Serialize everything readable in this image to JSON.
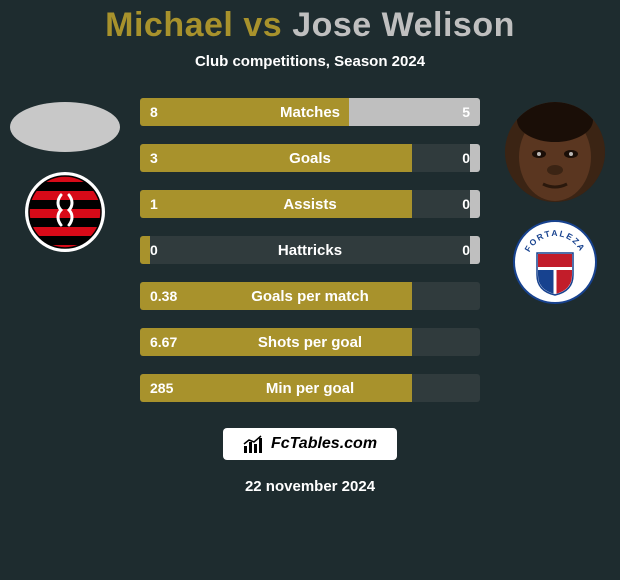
{
  "title": {
    "player1": "Michael",
    "vs": "vs",
    "player2": "Jose Welison",
    "player1_color": "#a8922c",
    "player2_color": "#bfbfbf"
  },
  "subtitle": "Club competitions, Season 2024",
  "colors": {
    "bar_left": "#a8922c",
    "bar_right": "#bfbfbf",
    "bar_track": "#303b3d",
    "background": "#1e2c2f"
  },
  "stats": [
    {
      "label": "Matches",
      "left_val": "8",
      "right_val": "5",
      "left_pct": 61.5,
      "right_pct": 38.5
    },
    {
      "label": "Goals",
      "left_val": "3",
      "right_val": "0",
      "left_pct": 80.0,
      "right_pct": 3.0
    },
    {
      "label": "Assists",
      "left_val": "1",
      "right_val": "0",
      "left_pct": 80.0,
      "right_pct": 3.0
    },
    {
      "label": "Hattricks",
      "left_val": "0",
      "right_val": "0",
      "left_pct": 3.0,
      "right_pct": 3.0
    },
    {
      "label": "Goals per match",
      "left_val": "0.38",
      "right_val": "",
      "left_pct": 80.0,
      "right_pct": 0.0
    },
    {
      "label": "Shots per goal",
      "left_val": "6.67",
      "right_val": "",
      "left_pct": 80.0,
      "right_pct": 0.0
    },
    {
      "label": "Min per goal",
      "left_val": "285",
      "right_val": "",
      "left_pct": 80.0,
      "right_pct": 0.0
    }
  ],
  "footer": {
    "site": "FcTables.com",
    "date": "22 november 2024"
  },
  "badges": {
    "left": {
      "name": "flamengo-badge",
      "outer": "#ffffff",
      "stripes": [
        "#d70a18",
        "#000000"
      ]
    },
    "right": {
      "name": "fortaleza-badge",
      "outer": "#ffffff",
      "colors": {
        "red": "#c21d2a",
        "blue": "#17428f"
      },
      "text": "FORTALEZA"
    }
  }
}
